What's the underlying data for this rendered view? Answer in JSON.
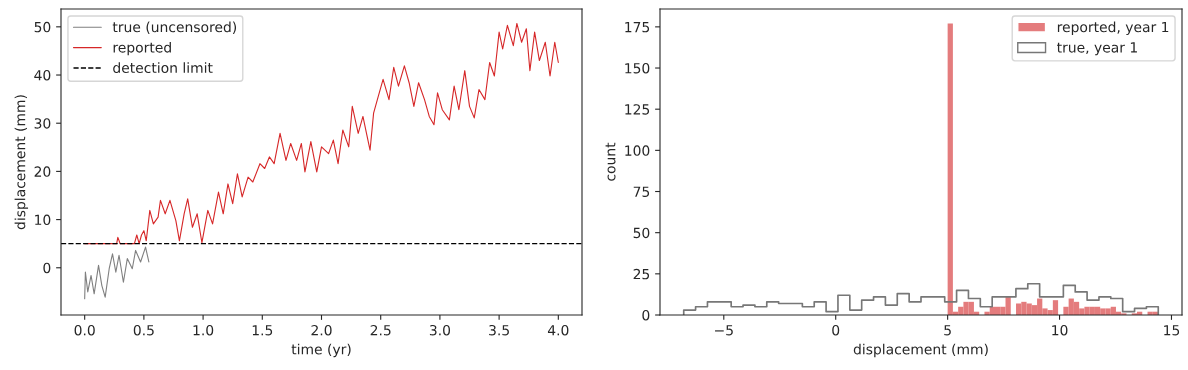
{
  "chart_data": [
    {
      "type": "line",
      "xlabel": "time (yr)",
      "ylabel": "displacement (mm)",
      "xlim": [
        -0.2,
        4.2
      ],
      "xticks": [
        {
          "value": 0,
          "label": "0.0"
        },
        {
          "value": 0.5,
          "label": "0.5"
        },
        {
          "value": 1,
          "label": "1.0"
        },
        {
          "value": 1.5,
          "label": "1.5"
        },
        {
          "value": 2,
          "label": "2.0"
        },
        {
          "value": 2.5,
          "label": "2.5"
        },
        {
          "value": 3,
          "label": "3.0"
        },
        {
          "value": 3.5,
          "label": "3.5"
        },
        {
          "value": 4,
          "label": "4.0"
        }
      ],
      "ylim": [
        -9.8,
        53.7
      ],
      "yticks": [
        0,
        10,
        20,
        30,
        40,
        50
      ],
      "legend": "top left",
      "grid": false,
      "series": [
        {
          "name": "true (uncensored)",
          "color": "#808080",
          "x": [
            0.0,
            0.006,
            0.026,
            0.054,
            0.08,
            0.117,
            0.145,
            0.173,
            0.207,
            0.235,
            0.263,
            0.29,
            0.327,
            0.36,
            0.402,
            0.43,
            0.472,
            0.514,
            0.542
          ],
          "values": [
            -6.4,
            -0.9,
            -5.0,
            -1.6,
            -5.4,
            0.5,
            -3.7,
            -6.1,
            -0.2,
            2.9,
            -0.9,
            2.6,
            -3.0,
            1.9,
            -0.2,
            3.6,
            1.2,
            4.3,
            1.2
          ]
        },
        {
          "name": "reported",
          "color": "#d62728",
          "x": [
            0,
            0.27,
            0.28,
            0.3,
            0.42,
            0.44,
            0.46,
            0.48,
            0.5,
            0.52,
            0.55,
            0.58,
            0.62,
            0.64,
            0.68,
            0.72,
            0.77,
            0.8,
            0.84,
            0.87,
            0.91,
            0.95,
            0.99,
            1.04,
            1.08,
            1.13,
            1.17,
            1.21,
            1.25,
            1.29,
            1.33,
            1.38,
            1.42,
            1.48,
            1.52,
            1.56,
            1.6,
            1.65,
            1.7,
            1.74,
            1.79,
            1.83,
            1.86,
            1.91,
            1.96,
            2.0,
            2.06,
            2.1,
            2.14,
            2.18,
            2.23,
            2.26,
            2.31,
            2.35,
            2.38,
            2.41,
            2.44,
            2.48,
            2.52,
            2.57,
            2.61,
            2.65,
            2.7,
            2.74,
            2.78,
            2.82,
            2.87,
            2.91,
            2.95,
            2.98,
            3.02,
            3.08,
            3.12,
            3.16,
            3.21,
            3.25,
            3.29,
            3.33,
            3.38,
            3.42,
            3.46,
            3.5,
            3.53,
            3.57,
            3.62,
            3.65,
            3.69,
            3.73,
            3.76,
            3.8,
            3.84,
            3.89,
            3.93,
            3.97,
            4.0
          ],
          "values": [
            5,
            5,
            6.3,
            5,
            5,
            6.8,
            5,
            6.8,
            7.7,
            5.6,
            11.9,
            9.1,
            10.5,
            14,
            11.2,
            14,
            9.8,
            5.6,
            11.2,
            14.3,
            8.4,
            11.2,
            5.2,
            11.9,
            9.1,
            15.7,
            11.2,
            17.4,
            13.3,
            19.5,
            14.7,
            18.8,
            17.8,
            21.6,
            20.6,
            23,
            21.6,
            27.9,
            22.3,
            25.8,
            22.3,
            25.8,
            19.9,
            26.2,
            19.9,
            25.1,
            23.7,
            26.5,
            21.6,
            28.6,
            25.1,
            33.5,
            27.9,
            31.4,
            27.9,
            24.4,
            32.1,
            35.6,
            39.1,
            34.9,
            41.6,
            37.7,
            41.9,
            38.4,
            33.5,
            38.4,
            34.9,
            31.4,
            29.7,
            36.3,
            32.8,
            30.7,
            37.7,
            32.8,
            40.9,
            33.5,
            31.1,
            37.0,
            34.9,
            42.6,
            39.8,
            48.9,
            45.4,
            50.3,
            46.1,
            50.7,
            46.8,
            49.6,
            40.9,
            48.9,
            43.0,
            46.8,
            39.8,
            46.8,
            42.6
          ]
        }
      ],
      "ref_lines": [
        {
          "axis": "y",
          "value": 5,
          "label": "detection limit",
          "color": "#000000",
          "line_style": "dashed"
        }
      ]
    },
    {
      "type": "histogram",
      "xlabel": "displacement (mm)",
      "ylabel": "count",
      "xlim": [
        -7.85,
        15.47
      ],
      "xticks": [
        {
          "value": -5,
          "label": "−5"
        },
        0,
        5,
        10,
        15
      ],
      "ylim": [
        0,
        185.85
      ],
      "yticks": [
        0,
        25,
        50,
        75,
        100,
        125,
        150,
        175
      ],
      "legend": "top right",
      "grid": false,
      "series": [
        {
          "name": "reported, year 1",
          "color": "#e47c7d",
          "values": [
            177,
            2,
            5,
            8,
            8,
            2,
            0,
            2,
            5,
            5,
            5,
            11,
            0,
            7,
            8,
            7,
            6,
            10,
            4,
            3,
            9,
            0,
            5,
            10,
            8,
            4,
            5,
            5,
            5,
            4,
            4,
            5,
            2,
            1,
            0,
            1,
            2,
            0,
            2,
            2
          ]
        },
        {
          "name": "true, year 1",
          "type": "step",
          "color": "#777777",
          "x": [
            -6.79,
            -6.79,
            -6.26,
            -5.73,
            -5.2,
            -4.67,
            -4.14,
            -3.61,
            -3.08,
            -2.55,
            -2.02,
            -1.49,
            -0.96,
            -0.43,
            0.1,
            0.63,
            1.16,
            1.69,
            2.22,
            2.75,
            3.28,
            3.81,
            4.34,
            4.87,
            5.4,
            5.93,
            6.46,
            6.99,
            7.52,
            8.05,
            8.58,
            9.11,
            9.64,
            10.17,
            10.7,
            11.23,
            11.76,
            12.29,
            12.82,
            13.35,
            13.88,
            14.41
          ],
          "values": [
            0,
            3,
            5,
            8,
            8,
            5,
            6,
            5,
            8,
            7,
            7,
            5,
            8,
            2,
            12,
            3,
            9,
            11,
            6,
            13,
            8,
            11,
            11,
            8,
            15,
            10,
            5,
            11,
            11,
            16,
            19,
            11,
            11,
            18,
            14,
            9,
            11,
            10,
            2,
            4,
            5,
            0
          ]
        }
      ],
      "bins": [
        5.0,
        5.235,
        5.47,
        5.705,
        5.94,
        6.175,
        6.41,
        6.645,
        6.88,
        7.115,
        7.35,
        7.585,
        7.82,
        8.055,
        8.29,
        8.525,
        8.76,
        8.995,
        9.23,
        9.465,
        9.7,
        9.935,
        10.17,
        10.405,
        10.64,
        10.875,
        11.11,
        11.345,
        11.58,
        11.815,
        12.05,
        12.285,
        12.52,
        12.755,
        12.99,
        13.225,
        13.46,
        13.695,
        13.93,
        14.165,
        14.4
      ]
    }
  ]
}
